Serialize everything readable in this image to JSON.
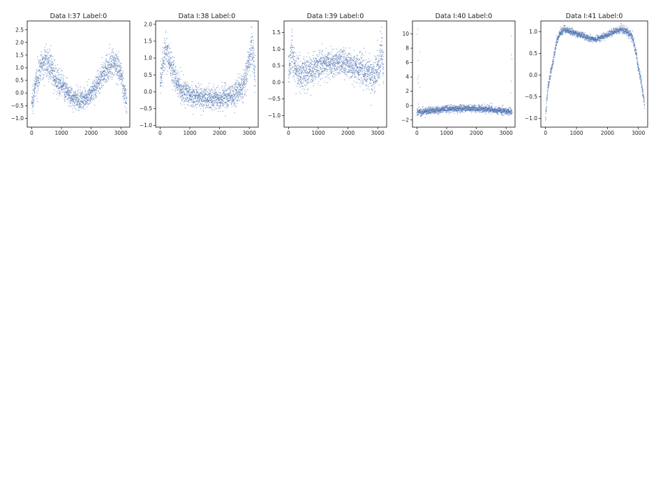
{
  "chart_data": [
    {
      "type": "scatter",
      "title": "Data I:37 Label:0",
      "xlabel": "",
      "ylabel": "",
      "xlim": [
        -150,
        3300
      ],
      "ylim": [
        -1.35,
        2.85
      ],
      "xticks": [
        0,
        1000,
        2000,
        3000
      ],
      "yticks": [
        -1.0,
        -0.5,
        0.0,
        0.5,
        1.0,
        1.5,
        2.0,
        2.5
      ],
      "n_points": 3200,
      "grid": false,
      "series": [
        {
          "color": "#4c72b0",
          "trend": [
            [
              0,
              -0.4
            ],
            [
              150,
              0.4
            ],
            [
              300,
              1.0
            ],
            [
              450,
              1.3
            ],
            [
              600,
              1.1
            ],
            [
              800,
              0.6
            ],
            [
              1000,
              0.3
            ],
            [
              1200,
              0.0
            ],
            [
              1400,
              -0.2
            ],
            [
              1600,
              -0.3
            ],
            [
              1800,
              -0.2
            ],
            [
              2000,
              0.0
            ],
            [
              2200,
              0.3
            ],
            [
              2400,
              0.7
            ],
            [
              2600,
              1.1
            ],
            [
              2800,
              1.2
            ],
            [
              3000,
              0.8
            ],
            [
              3100,
              0.2
            ],
            [
              3200,
              -0.5
            ]
          ],
          "spread": [
            [
              0,
              0.45
            ],
            [
              600,
              0.55
            ],
            [
              1400,
              0.35
            ],
            [
              2000,
              0.35
            ],
            [
              2600,
              0.55
            ],
            [
              3200,
              0.45
            ]
          ]
        }
      ]
    },
    {
      "type": "scatter",
      "title": "Data I:38 Label:0",
      "xlabel": "",
      "ylabel": "",
      "xlim": [
        -150,
        3300
      ],
      "ylim": [
        -1.05,
        2.1
      ],
      "xticks": [
        0,
        1000,
        2000,
        3000
      ],
      "yticks": [
        -1.0,
        -0.5,
        0.0,
        0.5,
        1.0,
        1.5,
        2.0
      ],
      "n_points": 3200,
      "grid": false,
      "series": [
        {
          "color": "#4c72b0",
          "trend": [
            [
              0,
              0.2
            ],
            [
              100,
              0.9
            ],
            [
              200,
              1.3
            ],
            [
              350,
              0.8
            ],
            [
              550,
              0.3
            ],
            [
              800,
              0.0
            ],
            [
              1100,
              -0.15
            ],
            [
              1600,
              -0.2
            ],
            [
              2100,
              -0.2
            ],
            [
              2500,
              -0.1
            ],
            [
              2800,
              0.2
            ],
            [
              3000,
              0.9
            ],
            [
              3100,
              1.4
            ],
            [
              3200,
              0.4
            ]
          ],
          "spread": [
            [
              0,
              0.4
            ],
            [
              300,
              0.5
            ],
            [
              1000,
              0.3
            ],
            [
              2200,
              0.3
            ],
            [
              3000,
              0.45
            ],
            [
              3200,
              0.45
            ]
          ]
        }
      ]
    },
    {
      "type": "scatter",
      "title": "Data I:39 Label:0",
      "xlabel": "",
      "ylabel": "",
      "xlim": [
        -150,
        3300
      ],
      "ylim": [
        -1.35,
        1.85
      ],
      "xticks": [
        0,
        1000,
        2000,
        3000
      ],
      "yticks": [
        -1.0,
        -0.5,
        0.0,
        0.5,
        1.0,
        1.5
      ],
      "n_points": 3200,
      "grid": false,
      "series": [
        {
          "color": "#4c72b0",
          "trend": [
            [
              0,
              0.3
            ],
            [
              100,
              1.0
            ],
            [
              200,
              0.5
            ],
            [
              400,
              0.2
            ],
            [
              700,
              0.35
            ],
            [
              1000,
              0.5
            ],
            [
              1500,
              0.6
            ],
            [
              2000,
              0.55
            ],
            [
              2400,
              0.45
            ],
            [
              2700,
              0.25
            ],
            [
              2900,
              0.2
            ],
            [
              3050,
              0.5
            ],
            [
              3150,
              1.0
            ],
            [
              3200,
              0.2
            ]
          ],
          "spread": [
            [
              0,
              0.55
            ],
            [
              400,
              0.45
            ],
            [
              1500,
              0.35
            ],
            [
              2700,
              0.45
            ],
            [
              3200,
              0.55
            ]
          ]
        }
      ]
    },
    {
      "type": "scatter",
      "title": "Data I:40 Label:0",
      "xlabel": "",
      "ylabel": "",
      "xlim": [
        -150,
        3300
      ],
      "ylim": [
        -3.0,
        11.8
      ],
      "xticks": [
        0,
        1000,
        2000,
        3000
      ],
      "yticks": [
        -2,
        0,
        2,
        4,
        6,
        8,
        10
      ],
      "n_points": 3200,
      "grid": false,
      "series": [
        {
          "color": "#4c72b0",
          "trend": [
            [
              0,
              -0.9
            ],
            [
              400,
              -0.75
            ],
            [
              1000,
              -0.5
            ],
            [
              1600,
              -0.4
            ],
            [
              2200,
              -0.45
            ],
            [
              2800,
              -0.7
            ],
            [
              3200,
              -0.9
            ]
          ],
          "spread": [
            [
              0,
              0.45
            ],
            [
              3200,
              0.45
            ]
          ]
        }
      ]
    },
    {
      "type": "scatter",
      "title": "Data I:41 Label:0",
      "xlabel": "",
      "ylabel": "",
      "xlim": [
        -150,
        3300
      ],
      "ylim": [
        -1.2,
        1.25
      ],
      "xticks": [
        0,
        1000,
        2000,
        3000
      ],
      "yticks": [
        -1.0,
        -0.5,
        0.0,
        0.5,
        1.0
      ],
      "n_points": 3200,
      "grid": false,
      "series": [
        {
          "color": "#4c72b0",
          "trend": [
            [
              0,
              -1.0
            ],
            [
              60,
              -0.4
            ],
            [
              150,
              0.0
            ],
            [
              250,
              0.35
            ],
            [
              350,
              0.75
            ],
            [
              450,
              0.95
            ],
            [
              600,
              1.05
            ],
            [
              800,
              1.0
            ],
            [
              1000,
              0.95
            ],
            [
              1200,
              0.92
            ],
            [
              1400,
              0.85
            ],
            [
              1600,
              0.82
            ],
            [
              1800,
              0.87
            ],
            [
              2000,
              0.93
            ],
            [
              2200,
              1.0
            ],
            [
              2450,
              1.05
            ],
            [
              2650,
              1.0
            ],
            [
              2800,
              0.9
            ],
            [
              2900,
              0.6
            ],
            [
              3000,
              0.2
            ],
            [
              3100,
              -0.2
            ],
            [
              3200,
              -0.7
            ]
          ],
          "spread": [
            [
              0,
              0.1
            ],
            [
              500,
              0.08
            ],
            [
              1600,
              0.06
            ],
            [
              2600,
              0.08
            ],
            [
              3200,
              0.1
            ]
          ]
        }
      ]
    }
  ]
}
